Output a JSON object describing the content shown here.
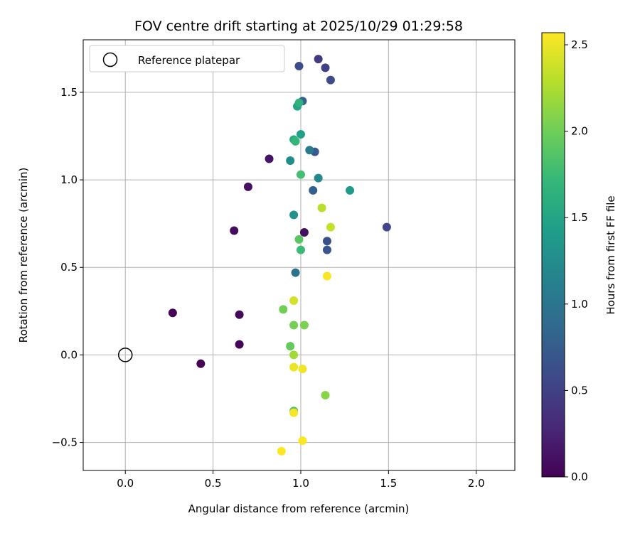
{
  "chart_data": {
    "type": "scatter",
    "title": "FOV centre drift starting at 2025/10/29 01:29:58",
    "xlabel": "Angular distance from reference (arcmin)",
    "ylabel": "Rotation from reference (arcmin)",
    "xlim": [
      -0.24,
      2.22
    ],
    "ylim": [
      -0.66,
      1.8
    ],
    "grid": true,
    "x_ticks": [
      0.0,
      0.5,
      1.0,
      1.5,
      2.0
    ],
    "x_tick_labels": [
      "0.0",
      "0.5",
      "1.0",
      "1.5",
      "2.0"
    ],
    "y_ticks": [
      -0.5,
      0.0,
      0.5,
      1.0,
      1.5
    ],
    "y_tick_labels": [
      "−0.5",
      "0.0",
      "0.5",
      "1.0",
      "1.5"
    ],
    "legend": {
      "position": "top-left",
      "entries": [
        "Reference platepar"
      ]
    },
    "reference_point": {
      "x": 0.0,
      "y": 0.0,
      "label": "Reference platepar"
    },
    "colorbar": {
      "label": "Hours from first FF file",
      "range": [
        0.0,
        2.57
      ],
      "ticks": [
        0.0,
        0.5,
        1.0,
        1.5,
        2.0,
        2.5
      ],
      "tick_labels": [
        "0.0",
        "0.5",
        "1.0",
        "1.5",
        "2.0",
        "2.5"
      ],
      "colormap": "viridis",
      "colormap_stops": [
        "#440154",
        "#482878",
        "#3e4989",
        "#31688e",
        "#26828e",
        "#1f9e89",
        "#35b779",
        "#6ece58",
        "#b5de2b",
        "#fde725"
      ]
    },
    "points": [
      {
        "x": 0.43,
        "y": -0.05,
        "hours": 0.0
      },
      {
        "x": 0.27,
        "y": 0.24,
        "hours": 0.02
      },
      {
        "x": 0.65,
        "y": 0.06,
        "hours": 0.04
      },
      {
        "x": 0.65,
        "y": 0.23,
        "hours": 0.06
      },
      {
        "x": 0.62,
        "y": 0.71,
        "hours": 0.08
      },
      {
        "x": 1.02,
        "y": 0.7,
        "hours": 0.1
      },
      {
        "x": 0.7,
        "y": 0.96,
        "hours": 0.12
      },
      {
        "x": 0.82,
        "y": 1.12,
        "hours": 0.15
      },
      {
        "x": 1.1,
        "y": 1.69,
        "hours": 0.45
      },
      {
        "x": 1.14,
        "y": 1.64,
        "hours": 0.5
      },
      {
        "x": 0.99,
        "y": 1.65,
        "hours": 0.6
      },
      {
        "x": 1.17,
        "y": 1.57,
        "hours": 0.58
      },
      {
        "x": 1.49,
        "y": 0.73,
        "hours": 0.55
      },
      {
        "x": 1.15,
        "y": 0.65,
        "hours": 0.63
      },
      {
        "x": 1.15,
        "y": 0.6,
        "hours": 0.68
      },
      {
        "x": 1.08,
        "y": 1.16,
        "hours": 0.72
      },
      {
        "x": 1.07,
        "y": 0.94,
        "hours": 0.78
      },
      {
        "x": 1.01,
        "y": 1.45,
        "hours": 0.8
      },
      {
        "x": 0.97,
        "y": 0.47,
        "hours": 0.95
      },
      {
        "x": 1.05,
        "y": 1.17,
        "hours": 1.05
      },
      {
        "x": 1.1,
        "y": 1.01,
        "hours": 1.2
      },
      {
        "x": 0.94,
        "y": 1.11,
        "hours": 1.25
      },
      {
        "x": 0.96,
        "y": 0.8,
        "hours": 1.3
      },
      {
        "x": 1.28,
        "y": 0.94,
        "hours": 1.4
      },
      {
        "x": 1.0,
        "y": 1.26,
        "hours": 1.45
      },
      {
        "x": 0.98,
        "y": 1.42,
        "hours": 1.5
      },
      {
        "x": 0.96,
        "y": 1.23,
        "hours": 1.6
      },
      {
        "x": 0.99,
        "y": 1.44,
        "hours": 1.65
      },
      {
        "x": 0.97,
        "y": 1.22,
        "hours": 1.7
      },
      {
        "x": 1.0,
        "y": 0.6,
        "hours": 1.75
      },
      {
        "x": 1.0,
        "y": 1.03,
        "hours": 1.8
      },
      {
        "x": 0.99,
        "y": 0.66,
        "hours": 1.9
      },
      {
        "x": 0.96,
        "y": -0.32,
        "hours": 1.85
      },
      {
        "x": 0.94,
        "y": 0.05,
        "hours": 1.95
      },
      {
        "x": 0.9,
        "y": 0.26,
        "hours": 2.0
      },
      {
        "x": 0.96,
        "y": 0.17,
        "hours": 2.02
      },
      {
        "x": 1.02,
        "y": 0.17,
        "hours": 2.05
      },
      {
        "x": 1.14,
        "y": -0.23,
        "hours": 2.1
      },
      {
        "x": 0.96,
        "y": 0.0,
        "hours": 2.2
      },
      {
        "x": 1.12,
        "y": 0.84,
        "hours": 2.3
      },
      {
        "x": 1.17,
        "y": 0.73,
        "hours": 2.35
      },
      {
        "x": 0.96,
        "y": 0.31,
        "hours": 2.4
      },
      {
        "x": 0.96,
        "y": -0.07,
        "hours": 2.5
      },
      {
        "x": 1.01,
        "y": -0.08,
        "hours": 2.52
      },
      {
        "x": 0.96,
        "y": -0.33,
        "hours": 2.54
      },
      {
        "x": 1.15,
        "y": 0.45,
        "hours": 2.55
      },
      {
        "x": 1.01,
        "y": -0.49,
        "hours": 2.56
      },
      {
        "x": 0.89,
        "y": -0.55,
        "hours": 2.57
      }
    ]
  }
}
